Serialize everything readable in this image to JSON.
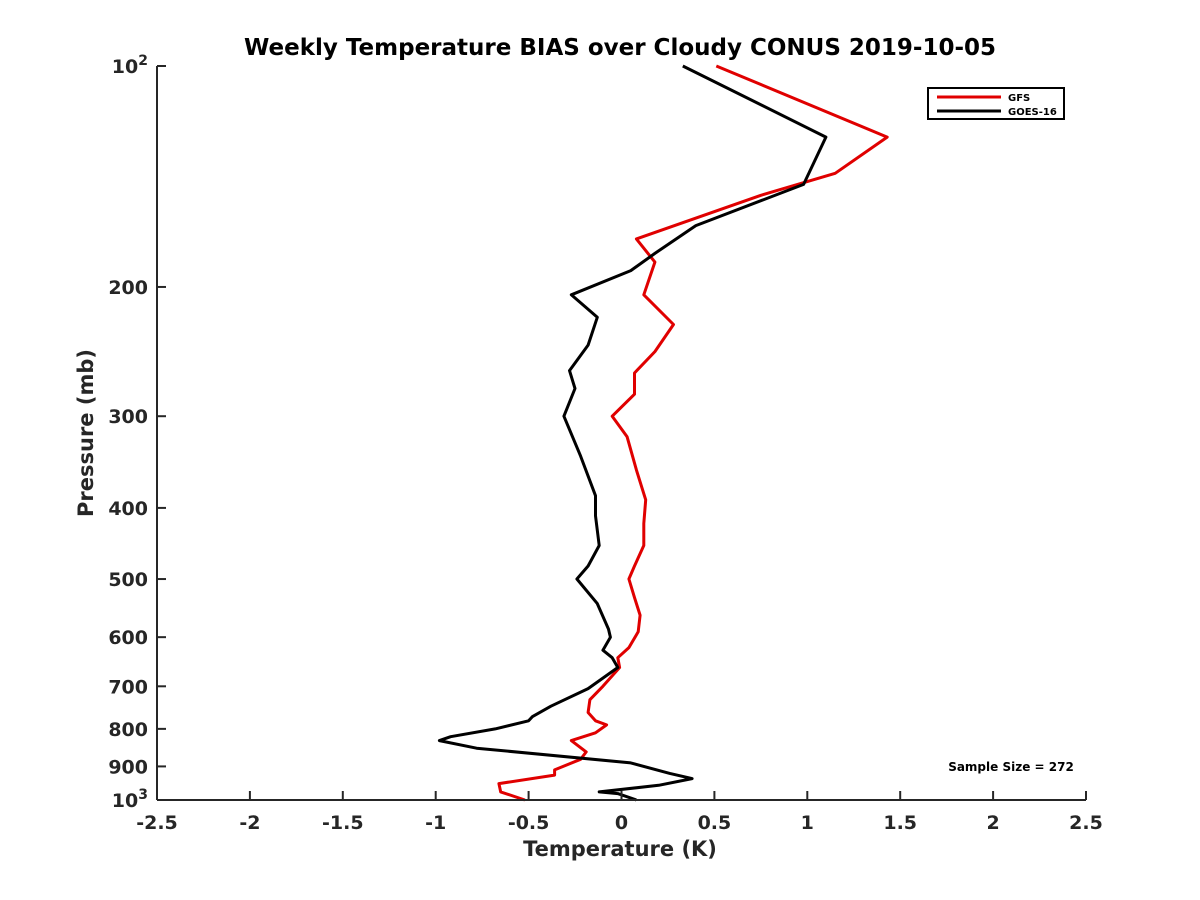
{
  "chart_data": {
    "type": "line",
    "title": "Weekly Temperature BIAS over Cloudy CONUS 2019-10-05",
    "xlabel": "Temperature (K)",
    "ylabel": "Pressure (mb)",
    "xlim": [
      -2.5,
      2.5
    ],
    "ylim": [
      100,
      1000
    ],
    "y_scale": "log",
    "y_reversed": true,
    "grid": false,
    "legend_position": "top-right",
    "x_ticks": [
      -2.5,
      -2,
      -1.5,
      -1,
      -0.5,
      0,
      0.5,
      1,
      1.5,
      2,
      2.5
    ],
    "x_tick_labels": [
      "-2.5",
      "-2",
      "-1.5",
      "-1",
      "-0.5",
      "0",
      "0.5",
      "1",
      "1.5",
      "2",
      "2.5"
    ],
    "y_ticks": [
      {
        "value": 100,
        "base": "10",
        "exp": "2"
      },
      {
        "value": 200,
        "label": "200"
      },
      {
        "value": 300,
        "label": "300"
      },
      {
        "value": 400,
        "label": "400"
      },
      {
        "value": 500,
        "label": "500"
      },
      {
        "value": 600,
        "label": "600"
      },
      {
        "value": 700,
        "label": "700"
      },
      {
        "value": 800,
        "label": "800"
      },
      {
        "value": 900,
        "label": "900"
      },
      {
        "value": 1000,
        "base": "10",
        "exp": "3"
      }
    ],
    "annotation": "Sample Size = 272",
    "series": [
      {
        "name": "GFS",
        "color": "#e00000",
        "points": [
          [
            0.51,
            100
          ],
          [
            1.43,
            125
          ],
          [
            1.15,
            140
          ],
          [
            0.75,
            150
          ],
          [
            0.08,
            172
          ],
          [
            0.18,
            185
          ],
          [
            0.12,
            205
          ],
          [
            0.28,
            225
          ],
          [
            0.18,
            245
          ],
          [
            0.07,
            262
          ],
          [
            0.07,
            280
          ],
          [
            -0.05,
            300
          ],
          [
            0.03,
            320
          ],
          [
            0.08,
            355
          ],
          [
            0.13,
            390
          ],
          [
            0.12,
            420
          ],
          [
            0.12,
            450
          ],
          [
            0.07,
            480
          ],
          [
            0.04,
            500
          ],
          [
            0.07,
            530
          ],
          [
            0.1,
            560
          ],
          [
            0.09,
            590
          ],
          [
            0.04,
            620
          ],
          [
            -0.02,
            640
          ],
          [
            -0.01,
            660
          ],
          [
            -0.1,
            700
          ],
          [
            -0.17,
            730
          ],
          [
            -0.18,
            760
          ],
          [
            -0.14,
            780
          ],
          [
            -0.08,
            790
          ],
          [
            -0.14,
            810
          ],
          [
            -0.27,
            830
          ],
          [
            -0.19,
            860
          ],
          [
            -0.22,
            880
          ],
          [
            -0.36,
            910
          ],
          [
            -0.36,
            925
          ],
          [
            -0.66,
            950
          ],
          [
            -0.65,
            975
          ],
          [
            -0.52,
            1000
          ]
        ]
      },
      {
        "name": "GOES-16",
        "color": "#000000",
        "points": [
          [
            0.33,
            100
          ],
          [
            1.1,
            125
          ],
          [
            0.98,
            145
          ],
          [
            0.4,
            165
          ],
          [
            0.18,
            180
          ],
          [
            0.05,
            190
          ],
          [
            -0.27,
            205
          ],
          [
            -0.13,
            220
          ],
          [
            -0.18,
            240
          ],
          [
            -0.28,
            260
          ],
          [
            -0.25,
            275
          ],
          [
            -0.31,
            300
          ],
          [
            -0.22,
            340
          ],
          [
            -0.14,
            385
          ],
          [
            -0.14,
            410
          ],
          [
            -0.12,
            450
          ],
          [
            -0.18,
            480
          ],
          [
            -0.24,
            500
          ],
          [
            -0.13,
            540
          ],
          [
            -0.07,
            585
          ],
          [
            -0.06,
            600
          ],
          [
            -0.1,
            625
          ],
          [
            -0.05,
            640
          ],
          [
            -0.02,
            660
          ],
          [
            -0.18,
            705
          ],
          [
            -0.38,
            745
          ],
          [
            -0.48,
            770
          ],
          [
            -0.5,
            780
          ],
          [
            -0.68,
            800
          ],
          [
            -0.92,
            820
          ],
          [
            -0.98,
            830
          ],
          [
            -0.78,
            850
          ],
          [
            0.05,
            890
          ],
          [
            0.26,
            920
          ],
          [
            0.38,
            935
          ],
          [
            0.2,
            955
          ],
          [
            -0.12,
            975
          ],
          [
            -0.02,
            980
          ],
          [
            0.08,
            1000
          ]
        ]
      }
    ]
  }
}
